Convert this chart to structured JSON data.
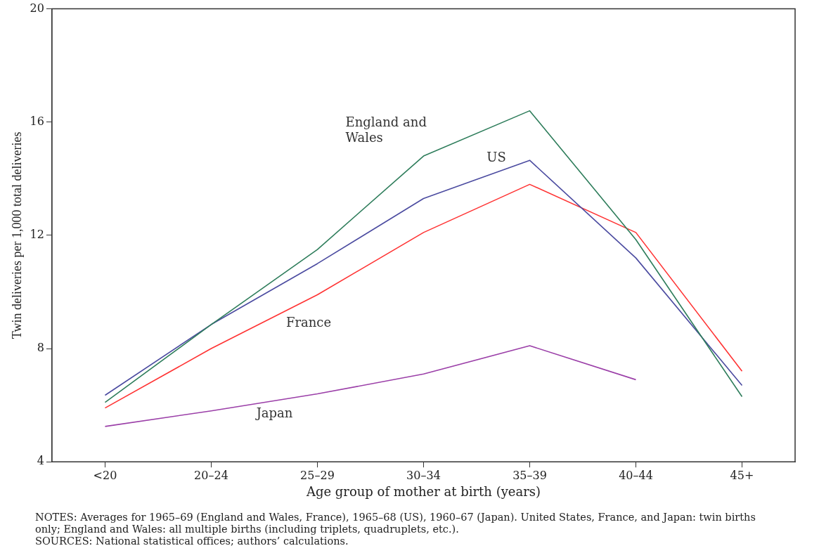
{
  "chart_data": {
    "type": "line",
    "xlabel": "Age group of mother at birth (years)",
    "ylabel": "Twin deliveries per 1,000 total deliveries",
    "categories": [
      "<20",
      "20–24",
      "25–29",
      "30–34",
      "35–39",
      "40–44",
      "45+"
    ],
    "series": [
      {
        "name": "England and Wales",
        "color": "#2e7d5b",
        "values": [
          6.1,
          8.85,
          11.5,
          14.8,
          16.4,
          11.85,
          6.3
        ]
      },
      {
        "name": "US",
        "color": "#4b4ba0",
        "values": [
          6.35,
          8.85,
          11.0,
          13.3,
          14.65,
          11.2,
          6.7
        ]
      },
      {
        "name": "France",
        "color": "#ff3333",
        "values": [
          5.9,
          8.0,
          9.9,
          12.1,
          13.8,
          12.1,
          7.2
        ]
      },
      {
        "name": "Japan",
        "color": "#9b3fa8",
        "values": [
          5.25,
          5.8,
          6.4,
          7.1,
          8.1,
          6.9,
          null
        ]
      }
    ],
    "ylim": [
      4,
      20
    ],
    "yticks": [
      4,
      8,
      12,
      16,
      20
    ],
    "grid": false,
    "legend": false,
    "marker": "none",
    "line_style": "solid",
    "annotations": [
      "NOTES: Averages for 1965–69 (England and Wales, France), 1965–68 (US), 1960–67 (Japan). United States, France, and Japan: twin births only; England and Wales: all multiple births (including triplets, quadruplets, etc.).",
      "SOURCES: National statistical offices; authors’ calculations."
    ]
  }
}
